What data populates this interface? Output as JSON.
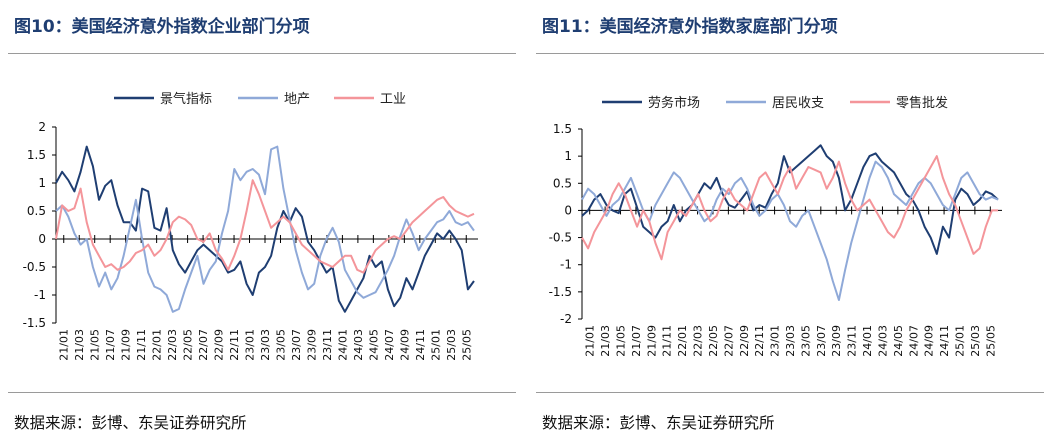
{
  "left": {
    "title": "图10：美国经济意外指数企业部门分项",
    "source": "数据来源：彭博、东吴证券研究所"
  },
  "right": {
    "title": "图11：美国经济意外指数家庭部门分项",
    "source": "数据来源：彭博、东吴证券研究所"
  },
  "colors": {
    "dark": "#1f3e72",
    "light": "#8fa9d8",
    "pink": "#f4959a",
    "title": "#1f3e72"
  },
  "chart_data": [
    {
      "type": "line",
      "title": "图10：美国经济意外指数企业部门分项",
      "ylim": [
        -1.5,
        2
      ],
      "yticks": [
        "2",
        "1.5",
        "1",
        "0.5",
        "0",
        "-0.5",
        "-1",
        "-1.5"
      ],
      "x_labels": [
        "21/01",
        "21/03",
        "21/05",
        "21/07",
        "21/09",
        "21/11",
        "22/01",
        "22/03",
        "22/05",
        "22/07",
        "22/09",
        "22/11",
        "23/01",
        "23/03",
        "23/05",
        "23/07",
        "23/09",
        "23/11",
        "24/01",
        "24/03",
        "24/05",
        "24/07",
        "24/09",
        "24/11",
        "25/01",
        "25/03",
        "25/05"
      ],
      "legend": [
        "景气指标",
        "地产",
        "工业"
      ],
      "series": [
        {
          "name": "景气指标",
          "color_key": "dark",
          "values": [
            1.0,
            1.2,
            1.05,
            0.85,
            1.2,
            1.65,
            1.3,
            0.7,
            0.95,
            1.05,
            0.6,
            0.3,
            0.3,
            0.15,
            0.9,
            0.85,
            0.2,
            0.15,
            0.55,
            -0.2,
            -0.45,
            -0.6,
            -0.4,
            -0.2,
            -0.1,
            -0.2,
            -0.3,
            -0.4,
            -0.6,
            -0.55,
            -0.4,
            -0.8,
            -1.0,
            -0.6,
            -0.5,
            -0.3,
            0.2,
            0.5,
            0.3,
            0.55,
            0.4,
            -0.05,
            -0.2,
            -0.4,
            -0.6,
            -0.5,
            -1.1,
            -1.3,
            -1.1,
            -0.9,
            -0.7,
            -0.3,
            -0.5,
            -0.4,
            -0.9,
            -1.2,
            -1.05,
            -0.7,
            -0.9,
            -0.6,
            -0.3,
            -0.1,
            0.1,
            0.0,
            0.15,
            0.0,
            -0.2,
            -0.9,
            -0.75
          ]
        },
        {
          "name": "地产",
          "color_key": "light",
          "values": [
            0.5,
            0.6,
            0.4,
            0.1,
            -0.1,
            0.0,
            -0.5,
            -0.85,
            -0.6,
            -0.9,
            -0.7,
            -0.3,
            0.2,
            0.7,
            0.0,
            -0.6,
            -0.85,
            -0.9,
            -1.0,
            -1.3,
            -1.25,
            -0.9,
            -0.6,
            -0.3,
            -0.8,
            -0.55,
            -0.4,
            0.1,
            0.5,
            1.25,
            1.05,
            1.2,
            1.25,
            1.15,
            0.8,
            1.6,
            1.65,
            0.9,
            0.35,
            -0.2,
            -0.6,
            -0.9,
            -0.8,
            -0.3,
            0.0,
            0.2,
            -0.05,
            -0.55,
            -0.75,
            -0.95,
            -1.05,
            -1.0,
            -0.95,
            -0.75,
            -0.55,
            -0.3,
            0.05,
            0.35,
            0.1,
            -0.2,
            0.0,
            0.15,
            0.3,
            0.35,
            0.5,
            0.3,
            0.25,
            0.3,
            0.15
          ]
        },
        {
          "name": "工业",
          "color_key": "pink",
          "values": [
            0.0,
            0.6,
            0.5,
            0.55,
            0.9,
            0.3,
            -0.1,
            -0.3,
            -0.5,
            -0.45,
            -0.55,
            -0.5,
            -0.4,
            -0.25,
            -0.2,
            -0.1,
            -0.3,
            -0.2,
            0.0,
            0.3,
            0.4,
            0.35,
            0.25,
            0.0,
            -0.05,
            0.1,
            -0.2,
            -0.35,
            -0.55,
            -0.3,
            0.0,
            0.5,
            1.05,
            0.8,
            0.5,
            0.2,
            0.3,
            0.4,
            0.3,
            0.1,
            -0.1,
            -0.2,
            -0.3,
            -0.4,
            -0.45,
            -0.5,
            -0.4,
            -0.3,
            -0.3,
            -0.55,
            -0.6,
            -0.4,
            -0.2,
            -0.1,
            0.0,
            0.05,
            0.0,
            0.15,
            0.3,
            0.4,
            0.5,
            0.6,
            0.7,
            0.75,
            0.6,
            0.5,
            0.45,
            0.4,
            0.45
          ]
        }
      ]
    },
    {
      "type": "line",
      "title": "图11：美国经济意外指数家庭部门分项",
      "ylim": [
        -2,
        1.5
      ],
      "yticks": [
        "1.5",
        "1",
        "0.5",
        "0",
        "-0.5",
        "-1",
        "-1.5",
        "-2"
      ],
      "x_labels": [
        "21/01",
        "21/03",
        "21/05",
        "21/07",
        "21/09",
        "21/11",
        "22/01",
        "22/03",
        "22/05",
        "22/07",
        "22/09",
        "22/11",
        "23/01",
        "23/03",
        "23/05",
        "23/07",
        "23/09",
        "23/11",
        "24/01",
        "24/03",
        "24/05",
        "24/07",
        "24/09",
        "24/11",
        "25/01",
        "25/03",
        "25/05"
      ],
      "legend": [
        "劳务市场",
        "居民收支",
        "零售批发"
      ],
      "series": [
        {
          "name": "劳务市场",
          "color_key": "dark",
          "values": [
            -0.1,
            0.0,
            0.2,
            0.3,
            0.1,
            0.0,
            -0.05,
            0.3,
            0.4,
            0.05,
            -0.3,
            -0.4,
            -0.5,
            -0.3,
            -0.2,
            0.1,
            -0.2,
            0.0,
            0.1,
            0.3,
            0.5,
            0.4,
            0.6,
            0.3,
            0.1,
            0.05,
            0.2,
            0.35,
            0.0,
            0.1,
            0.05,
            0.3,
            0.5,
            1.0,
            0.7,
            0.8,
            0.9,
            1.0,
            1.1,
            1.2,
            1.0,
            0.9,
            0.6,
            0.0,
            0.2,
            0.5,
            0.8,
            1.0,
            1.05,
            0.9,
            0.8,
            0.7,
            0.5,
            0.3,
            0.2,
            0.0,
            -0.3,
            -0.5,
            -0.8,
            -0.3,
            -0.5,
            0.2,
            0.4,
            0.3,
            0.1,
            0.2,
            0.35,
            0.3,
            0.2
          ]
        },
        {
          "name": "居民收支",
          "color_key": "light",
          "values": [
            0.2,
            0.4,
            0.3,
            0.1,
            -0.1,
            0.1,
            0.2,
            0.4,
            0.6,
            0.3,
            0.0,
            -0.2,
            0.1,
            0.3,
            0.5,
            0.7,
            0.6,
            0.4,
            0.2,
            0.0,
            -0.2,
            -0.1,
            0.2,
            0.4,
            0.3,
            0.5,
            0.6,
            0.4,
            0.1,
            -0.1,
            0.0,
            0.2,
            0.3,
            0.1,
            -0.2,
            -0.3,
            -0.1,
            0.0,
            -0.3,
            -0.6,
            -0.9,
            -1.3,
            -1.65,
            -1.1,
            -0.6,
            -0.2,
            0.2,
            0.6,
            0.9,
            0.8,
            0.6,
            0.3,
            0.2,
            0.1,
            0.3,
            0.5,
            0.6,
            0.5,
            0.3,
            0.1,
            0.0,
            0.3,
            0.6,
            0.7,
            0.5,
            0.3,
            0.2,
            0.25,
            0.2
          ]
        },
        {
          "name": "零售批发",
          "color_key": "pink",
          "values": [
            -0.5,
            -0.7,
            -0.4,
            -0.2,
            0.0,
            0.3,
            0.5,
            0.3,
            0.0,
            -0.3,
            0.0,
            -0.2,
            -0.6,
            -0.9,
            -0.4,
            -0.2,
            0.0,
            -0.1,
            0.1,
            0.3,
            0.0,
            -0.2,
            -0.1,
            0.2,
            0.4,
            0.2,
            0.1,
            0.0,
            0.3,
            0.6,
            0.7,
            0.5,
            0.3,
            0.6,
            0.8,
            0.4,
            0.6,
            0.8,
            0.75,
            0.7,
            0.4,
            0.6,
            0.9,
            0.5,
            0.2,
            0.0,
            0.1,
            0.2,
            0.0,
            -0.2,
            -0.4,
            -0.5,
            -0.3,
            0.0,
            0.2,
            0.4,
            0.6,
            0.8,
            1.0,
            0.6,
            0.3,
            0.1,
            -0.2,
            -0.5,
            -0.8,
            -0.7,
            -0.3,
            0.0,
            0.0
          ]
        }
      ]
    }
  ]
}
